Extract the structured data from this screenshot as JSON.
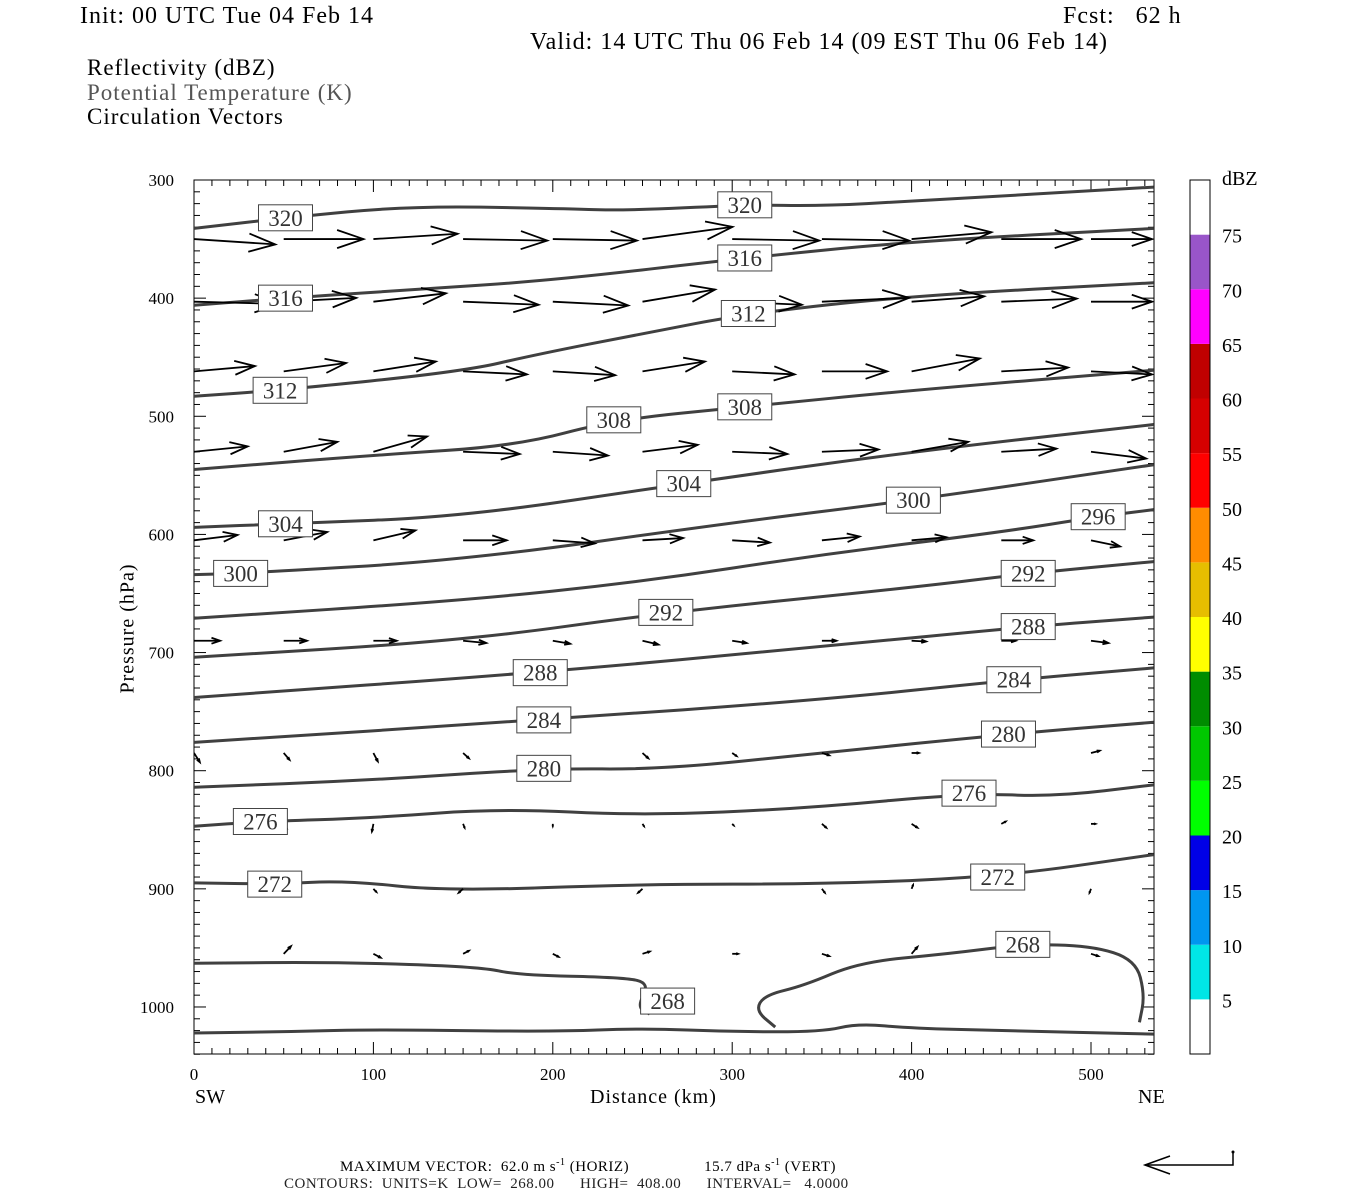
{
  "header": {
    "init": "Init: 00 UTC Tue 04 Feb 14",
    "fcst": "Fcst:   62 h",
    "valid": "Valid: 14 UTC Thu 06 Feb 14 (09 EST Thu 06 Feb 14)",
    "fields": [
      "Reflectivity (dBZ)",
      "Potential Temperature (K)",
      "Circulation Vectors"
    ]
  },
  "footer": {
    "max_vector_label": "MAXIMUM VECTOR:",
    "horiz_value": "62.0 m s",
    "horiz_suffix": "(HORIZ)",
    "vert_value": "15.7 dPa s",
    "vert_suffix": "(VERT)",
    "exponent": "-1",
    "contours": "CONTOURS:  UNITS=K  LOW=  268.00      HIGH=  408.00      INTERVAL=   4.0000"
  },
  "chart_data": {
    "type": "cross-section",
    "xlabel": "Distance (km)",
    "ylabel": "Pressure (hPa)",
    "x_left_label": "SW",
    "x_right_label": "NE",
    "xlim": [
      0,
      535
    ],
    "ylim": [
      1040,
      300
    ],
    "xticks": [
      0,
      100,
      200,
      300,
      400,
      500
    ],
    "yticks": [
      300,
      400,
      500,
      600,
      700,
      800,
      900,
      1000
    ],
    "colorbar": {
      "title": "dBZ",
      "levels": [
        0,
        5,
        10,
        15,
        20,
        25,
        30,
        35,
        40,
        45,
        50,
        55,
        60,
        65,
        70,
        75,
        80
      ],
      "tick_labels": [
        "5",
        "10",
        "15",
        "20",
        "25",
        "30",
        "35",
        "40",
        "45",
        "50",
        "55",
        "60",
        "65",
        "70",
        "75"
      ],
      "colors": [
        "#ffffff",
        "#00e6e6",
        "#0096f0",
        "#0000e6",
        "#00ff00",
        "#00c800",
        "#008c00",
        "#ffff00",
        "#e6be00",
        "#ff8c00",
        "#ff0000",
        "#d60000",
        "#c00000",
        "#ff00ff",
        "#9955c9",
        "#ffffff"
      ]
    },
    "contour_color": "#404040",
    "contours": [
      {
        "value": 320,
        "points": [
          [
            0,
            341
          ],
          [
            51,
            332
          ],
          [
            120,
            322
          ],
          [
            200,
            324
          ],
          [
            240,
            326
          ],
          [
            307,
            321
          ],
          [
            350,
            322
          ],
          [
            400,
            318
          ],
          [
            535,
            306
          ]
        ],
        "labels": [
          [
            51,
            332
          ],
          [
            307,
            321
          ]
        ]
      },
      {
        "value": 316,
        "points": [
          [
            0,
            406
          ],
          [
            51,
            400
          ],
          [
            120,
            393
          ],
          [
            200,
            385
          ],
          [
            307,
            366
          ],
          [
            400,
            352
          ],
          [
            535,
            341
          ]
        ],
        "labels": [
          [
            51,
            400
          ],
          [
            307,
            366
          ]
        ]
      },
      {
        "value": 312,
        "points": [
          [
            0,
            483
          ],
          [
            48,
            478
          ],
          [
            150,
            462
          ],
          [
            190,
            448
          ],
          [
            250,
            430
          ],
          [
            309,
            413
          ],
          [
            400,
            398
          ],
          [
            535,
            387
          ]
        ],
        "labels": [
          [
            48,
            478
          ],
          [
            309,
            413
          ]
        ]
      },
      {
        "value": 308,
        "points": [
          [
            0,
            545
          ],
          [
            100,
            533
          ],
          [
            180,
            525
          ],
          [
            234,
            503
          ],
          [
            307,
            492
          ],
          [
            400,
            478
          ],
          [
            535,
            461
          ]
        ],
        "labels": [
          [
            234,
            503
          ],
          [
            307,
            492
          ]
        ]
      },
      {
        "value": 304,
        "points": [
          [
            0,
            594
          ],
          [
            51,
            591
          ],
          [
            150,
            585
          ],
          [
            273,
            557
          ],
          [
            400,
            530
          ],
          [
            535,
            507
          ]
        ],
        "labels": [
          [
            51,
            591
          ],
          [
            273,
            557
          ]
        ]
      },
      {
        "value": 300,
        "points": [
          [
            0,
            634
          ],
          [
            26,
            633
          ],
          [
            150,
            622
          ],
          [
            300,
            590
          ],
          [
            401,
            571
          ],
          [
            535,
            541
          ]
        ],
        "labels": [
          [
            26,
            633
          ],
          [
            401,
            571
          ]
        ]
      },
      {
        "value": 296,
        "points": [
          [
            0,
            671
          ],
          [
            150,
            656
          ],
          [
            250,
            640
          ],
          [
            350,
            617
          ],
          [
            450,
            598
          ],
          [
            504,
            585
          ],
          [
            535,
            579
          ]
        ],
        "labels": [
          [
            504,
            585
          ]
        ]
      },
      {
        "value": 292,
        "points": [
          [
            0,
            704
          ],
          [
            150,
            690
          ],
          [
            263,
            666
          ],
          [
            400,
            645
          ],
          [
            465,
            633
          ],
          [
            535,
            623
          ]
        ],
        "labels": [
          [
            263,
            666
          ],
          [
            465,
            633
          ]
        ]
      },
      {
        "value": 288,
        "points": [
          [
            0,
            738
          ],
          [
            193,
            717
          ],
          [
            350,
            695
          ],
          [
            465,
            678
          ],
          [
            535,
            670
          ]
        ],
        "labels": [
          [
            193,
            717
          ],
          [
            465,
            678
          ]
        ]
      },
      {
        "value": 284,
        "points": [
          [
            0,
            776
          ],
          [
            195,
            757
          ],
          [
            350,
            740
          ],
          [
            457,
            723
          ],
          [
            535,
            713
          ]
        ],
        "labels": [
          [
            195,
            757
          ],
          [
            457,
            723
          ]
        ]
      },
      {
        "value": 280,
        "points": [
          [
            0,
            814
          ],
          [
            100,
            808
          ],
          [
            195,
            798
          ],
          [
            260,
            799
          ],
          [
            350,
            785
          ],
          [
            454,
            769
          ],
          [
            535,
            759
          ]
        ],
        "labels": [
          [
            195,
            798
          ],
          [
            454,
            769
          ]
        ]
      },
      {
        "value": 276,
        "points": [
          [
            0,
            847
          ],
          [
            37,
            843
          ],
          [
            100,
            840
          ],
          [
            170,
            832
          ],
          [
            250,
            838
          ],
          [
            340,
            832
          ],
          [
            432,
            819
          ],
          [
            480,
            822
          ],
          [
            535,
            812
          ]
        ],
        "labels": [
          [
            37,
            843
          ],
          [
            432,
            819
          ]
        ]
      },
      {
        "value": 272,
        "points": [
          [
            0,
            895
          ],
          [
            45,
            896
          ],
          [
            85,
            893
          ],
          [
            140,
            902
          ],
          [
            250,
            896
          ],
          [
            350,
            896
          ],
          [
            448,
            890
          ],
          [
            535,
            871
          ]
        ],
        "labels": [
          [
            45,
            896
          ],
          [
            448,
            890
          ]
        ]
      },
      {
        "value": 268,
        "points": [
          [
            0,
            963
          ],
          [
            80,
            962
          ],
          [
            160,
            966
          ],
          [
            180,
            973
          ],
          [
            240,
            975
          ],
          [
            254,
            980
          ],
          [
            247,
            1000
          ],
          [
            254,
            1006
          ]
        ],
        "labels": [
          [
            264,
            995
          ]
        ]
      },
      {
        "value": 268,
        "points": [
          [
            324,
            1017
          ],
          [
            313,
            1003
          ],
          [
            318,
            990
          ],
          [
            340,
            982
          ],
          [
            371,
            962
          ],
          [
            420,
            955
          ],
          [
            462,
            947
          ],
          [
            500,
            948
          ],
          [
            525,
            960
          ],
          [
            530,
            990
          ],
          [
            527,
            1013
          ]
        ],
        "labels": [
          [
            462,
            947
          ]
        ]
      },
      {
        "value": 268,
        "points": [
          [
            0,
            1022
          ],
          [
            50,
            1021
          ],
          [
            100,
            1019
          ],
          [
            200,
            1021
          ],
          [
            250,
            1018
          ],
          [
            300,
            1021
          ],
          [
            350,
            1021
          ],
          [
            370,
            1014
          ],
          [
            400,
            1018
          ],
          [
            450,
            1020
          ],
          [
            535,
            1023
          ]
        ],
        "labels": []
      }
    ],
    "vectors": {
      "reference": {
        "u_ms": 62.0,
        "omega_dpas": 15.7
      },
      "x_km": [
        0,
        50,
        100,
        150,
        200,
        250,
        300,
        350,
        400,
        450,
        500
      ],
      "rows": [
        {
          "p": 350,
          "u": [
            56,
            55,
            58,
            58,
            58,
            62,
            60,
            60,
            55,
            55,
            42
          ],
          "omega": [
            7,
            0,
            -7,
            2,
            2,
            -16,
            2,
            2,
            -9,
            0,
            0
          ]
        },
        {
          "p": 403,
          "u": [
            60,
            50,
            50,
            52,
            52,
            50,
            48,
            60,
            50,
            52,
            42
          ],
          "omega": [
            3,
            -5,
            -11,
            4,
            5,
            -16,
            4,
            -5,
            -7,
            -4,
            0
          ]
        },
        {
          "p": 462,
          "u": [
            42,
            43,
            43,
            44,
            43,
            43,
            43,
            45,
            47,
            46,
            42
          ],
          "omega": [
            -7,
            -11,
            -13,
            4,
            5,
            -13,
            4,
            0,
            -17,
            -5,
            4
          ]
        },
        {
          "p": 530,
          "u": [
            37,
            37,
            37,
            39,
            38,
            38,
            38,
            39,
            39,
            38,
            38
          ],
          "omega": [
            -7,
            -13,
            -20,
            3,
            5,
            -9,
            3,
            -3,
            -13,
            -4,
            9
          ]
        },
        {
          "p": 605,
          "u": [
            30,
            30,
            29,
            30,
            29,
            28,
            26,
            26,
            24,
            22,
            20
          ],
          "omega": [
            -7,
            -11,
            -13,
            0,
            4,
            -3,
            3,
            -5,
            -4,
            0,
            8
          ]
        },
        {
          "p": 690,
          "u": [
            18,
            16,
            16,
            16,
            12,
            11,
            10,
            10,
            10,
            10,
            12
          ],
          "omega": [
            0,
            0,
            0,
            3,
            4,
            5,
            3,
            0,
            1,
            0,
            3
          ]
        },
        {
          "p": 785,
          "u": [
            4,
            4,
            3,
            4,
            0,
            4,
            3,
            5,
            5,
            0,
            6
          ],
          "omega": [
            12,
            9,
            11,
            7,
            0,
            7,
            4,
            3,
            0,
            0,
            -3
          ]
        },
        {
          "p": 845,
          "u": [
            0,
            2,
            -1,
            1,
            0,
            1,
            1,
            3,
            4,
            3,
            3
          ],
          "omega": [
            0,
            5,
            10,
            5,
            3,
            3,
            2,
            5,
            5,
            -3,
            0
          ]
        },
        {
          "p": 900,
          "u": [
            0,
            0,
            2,
            -3,
            0,
            -3,
            0,
            2,
            1,
            0,
            -1
          ],
          "omega": [
            0,
            0,
            4,
            5,
            0,
            5,
            0,
            5,
            -5,
            0,
            5
          ]
        },
        {
          "p": 955,
          "u": [
            0,
            5,
            5,
            4,
            4,
            5,
            4,
            5,
            4,
            0,
            5
          ],
          "omega": [
            0,
            -10,
            5,
            -4,
            4,
            -3,
            0,
            3,
            -9,
            0,
            3
          ]
        }
      ]
    }
  }
}
